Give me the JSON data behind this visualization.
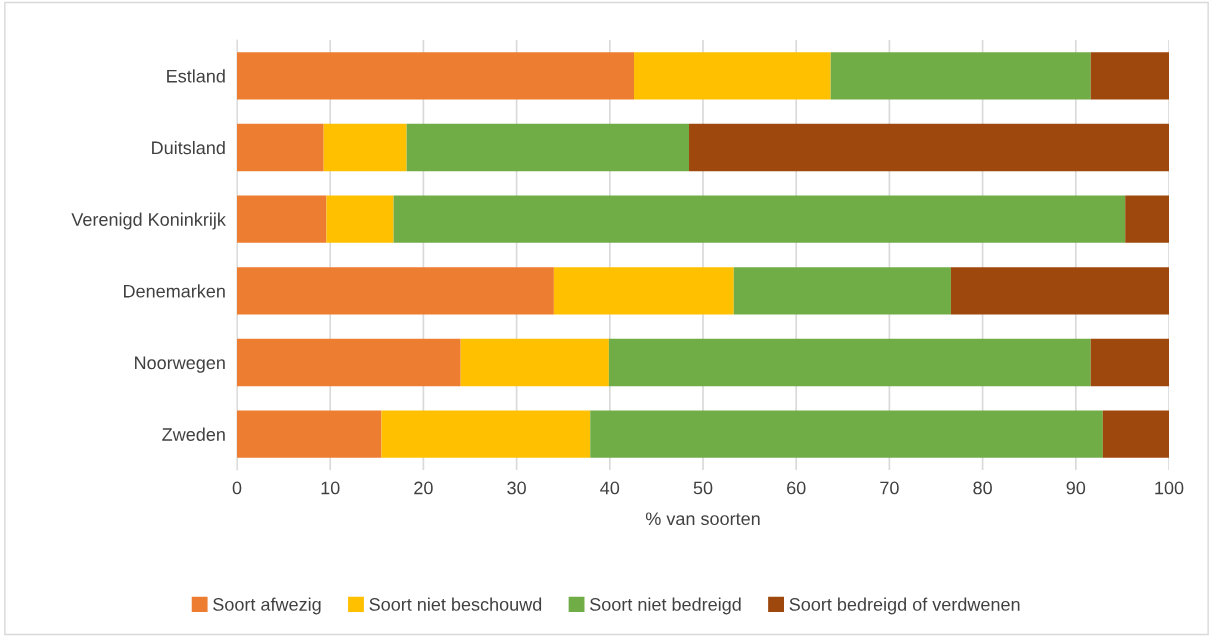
{
  "chart_data": {
    "type": "bar",
    "orientation": "horizontal",
    "stacked": true,
    "categories": [
      "Estland",
      "Duitsland",
      "Verenigd Koninkrijk",
      "Denemarken",
      "Noorwegen",
      "Zweden"
    ],
    "series": [
      {
        "name": "Soort afwezig",
        "color": "#ed7d31",
        "values": [
          42.6,
          9.3,
          9.6,
          34.0,
          24.0,
          15.5
        ]
      },
      {
        "name": "Soort niet beschouwd",
        "color": "#ffc000",
        "values": [
          21.1,
          8.9,
          7.2,
          19.3,
          15.9,
          22.4
        ]
      },
      {
        "name": "Soort niet bedreigd",
        "color": "#70ad47",
        "values": [
          27.9,
          30.3,
          78.5,
          23.3,
          51.7,
          55.0
        ]
      },
      {
        "name": "Soort bedreigd of verdwenen",
        "color": "#9e480e",
        "values": [
          8.4,
          51.5,
          4.7,
          23.4,
          8.4,
          7.1
        ]
      }
    ],
    "xlabel": "% van soorten",
    "xlim": [
      0,
      100
    ],
    "xticks": [
      0,
      10,
      20,
      30,
      40,
      50,
      60,
      70,
      80,
      90,
      100
    ],
    "grid": "x",
    "legend": "bottom"
  }
}
